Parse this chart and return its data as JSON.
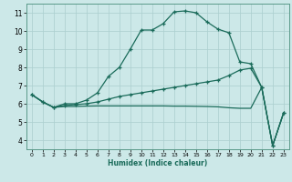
{
  "xlabel": "Humidex (Indice chaleur)",
  "background_color": "#cce8e8",
  "grid_color": "#aacece",
  "line_color": "#1a6b5a",
  "xlim": [
    -0.5,
    23.5
  ],
  "ylim": [
    3.5,
    11.5
  ],
  "xticks": [
    0,
    1,
    2,
    3,
    4,
    5,
    6,
    7,
    8,
    9,
    10,
    11,
    12,
    13,
    14,
    15,
    16,
    17,
    18,
    19,
    20,
    21,
    22,
    23
  ],
  "yticks": [
    4,
    5,
    6,
    7,
    8,
    9,
    10,
    11
  ],
  "line1_x": [
    0,
    1,
    2,
    3,
    4,
    5,
    6,
    7,
    8,
    9,
    10,
    11,
    12,
    13,
    14,
    15,
    16,
    17,
    18,
    19,
    20,
    21,
    22,
    23
  ],
  "line1_y": [
    6.5,
    6.1,
    5.8,
    6.0,
    6.0,
    6.2,
    6.6,
    7.5,
    8.0,
    9.0,
    10.05,
    10.05,
    10.4,
    11.05,
    11.1,
    11.0,
    10.5,
    10.1,
    9.9,
    8.3,
    8.2,
    6.9,
    3.7,
    5.5
  ],
  "line2_x": [
    0,
    1,
    2,
    3,
    4,
    5,
    6,
    7,
    8,
    9,
    10,
    11,
    12,
    13,
    14,
    15,
    16,
    17,
    18,
    19,
    20,
    21,
    22,
    23
  ],
  "line2_y": [
    6.5,
    6.1,
    5.8,
    5.9,
    5.95,
    6.0,
    6.1,
    6.25,
    6.4,
    6.5,
    6.6,
    6.7,
    6.8,
    6.9,
    7.0,
    7.1,
    7.2,
    7.3,
    7.55,
    7.85,
    7.95,
    6.9,
    3.7,
    5.5
  ],
  "line3_x": [
    0,
    1,
    2,
    3,
    4,
    5,
    6,
    7,
    8,
    9,
    10,
    11,
    12,
    13,
    14,
    15,
    16,
    17,
    18,
    19,
    20,
    21,
    22,
    23
  ],
  "line3_y": [
    6.5,
    6.1,
    5.8,
    5.85,
    5.85,
    5.87,
    5.88,
    5.88,
    5.88,
    5.88,
    5.88,
    5.88,
    5.88,
    5.87,
    5.87,
    5.86,
    5.85,
    5.83,
    5.78,
    5.75,
    5.75,
    6.9,
    3.7,
    5.5
  ]
}
